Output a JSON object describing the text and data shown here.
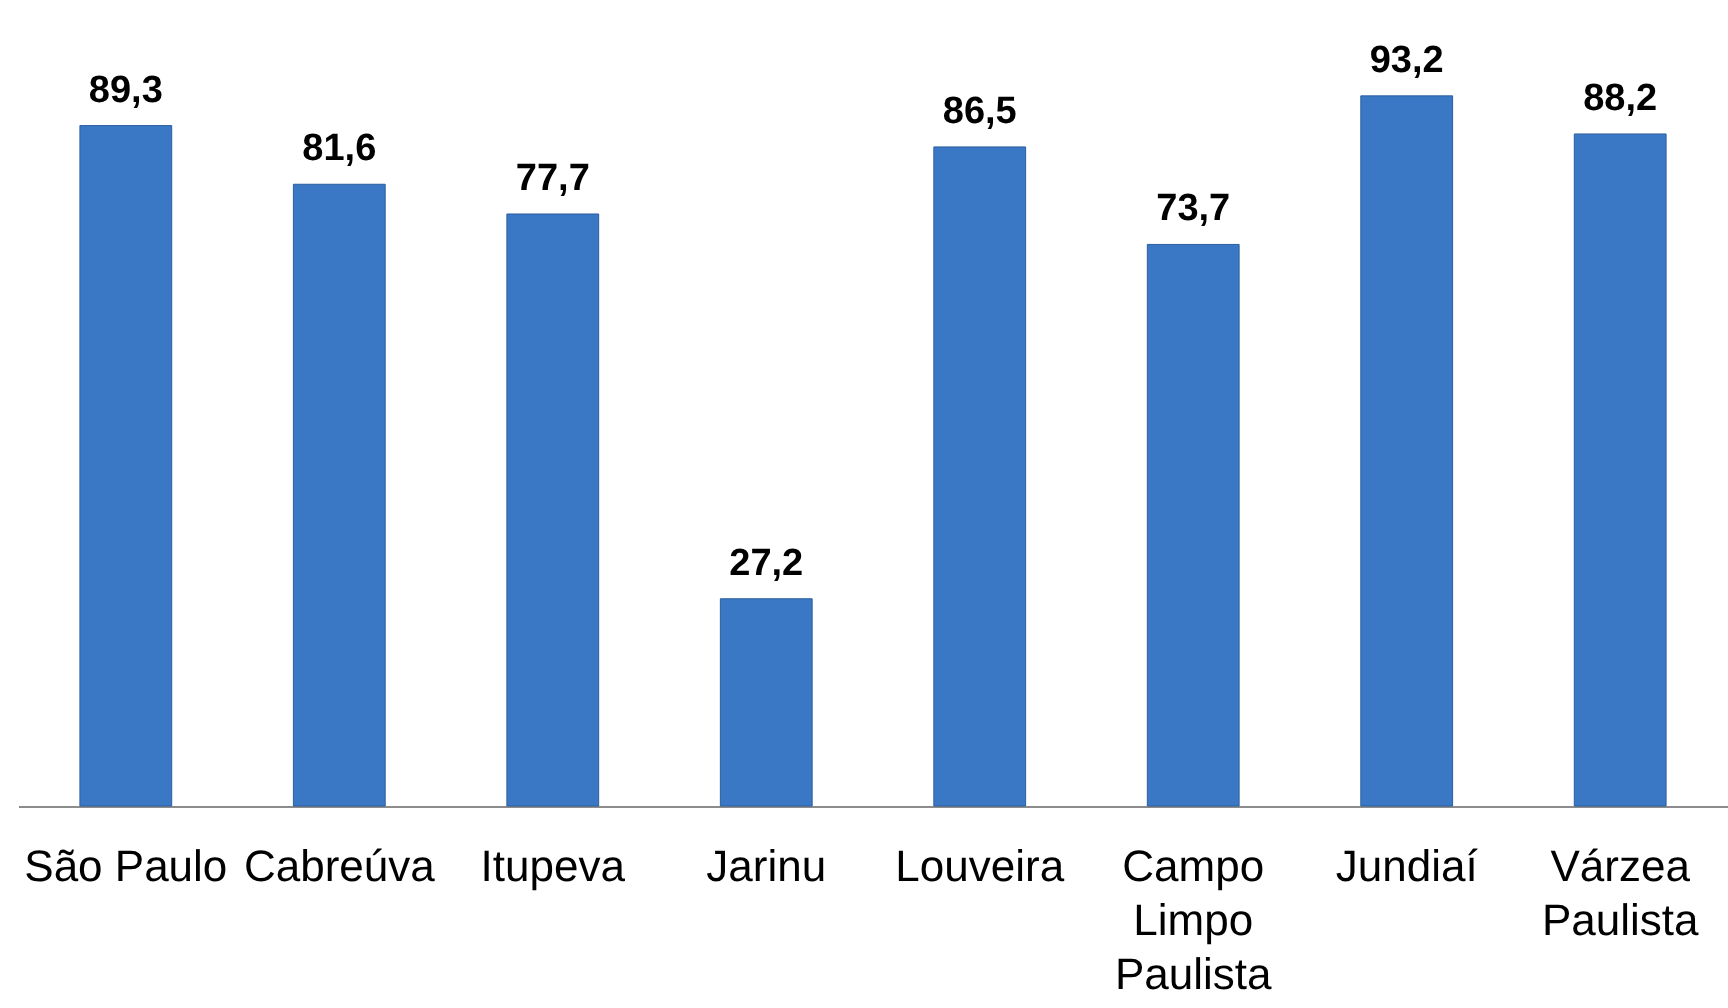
{
  "chart_data": {
    "type": "bar",
    "categories": [
      "São Paulo",
      "Cabreúva",
      "Itupeva",
      "Jarinu",
      "Louveira",
      "Campo Limpo Paulista",
      "Jundiaí",
      "Várzea Paulista"
    ],
    "values": [
      89.3,
      81.6,
      77.7,
      27.2,
      86.5,
      73.7,
      93.2,
      88.2
    ],
    "value_labels": [
      "89,3",
      "81,6",
      "77,7",
      "27,2",
      "86,5",
      "73,7",
      "93,2",
      "88,2"
    ],
    "color": "#3a78c6",
    "tick_labels": "x"
  }
}
